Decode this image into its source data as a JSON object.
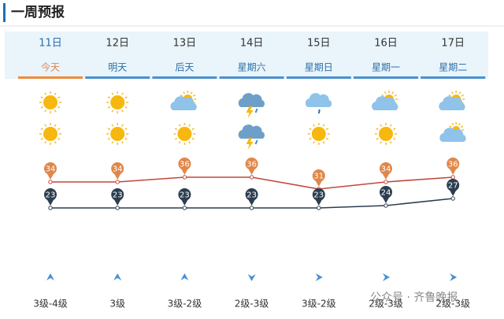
{
  "header": {
    "title": "一周预报"
  },
  "chart_data": {
    "type": "line",
    "categories": [
      "11日",
      "12日",
      "13日",
      "14日",
      "15日",
      "16日",
      "17日"
    ],
    "day_names": [
      "今天",
      "明天",
      "后天",
      "星期六",
      "星期日",
      "星期一",
      "星期二"
    ],
    "series": [
      {
        "color": "#e0874a",
        "line_color": "#c0473a",
        "values": [
          34,
          34,
          36,
          36,
          31,
          34,
          36
        ]
      },
      {
        "color": "#2c3e50",
        "line_color": "#2c3e50",
        "values": [
          23,
          23,
          23,
          23,
          23,
          24,
          27
        ]
      }
    ],
    "wind_levels": [
      "3级-4级",
      "3级",
      "3级-2级",
      "2级-3级",
      "3级-2级",
      "2级-3级",
      "2级-3级"
    ]
  },
  "watermark": "公众号 · 齐鲁晚报"
}
